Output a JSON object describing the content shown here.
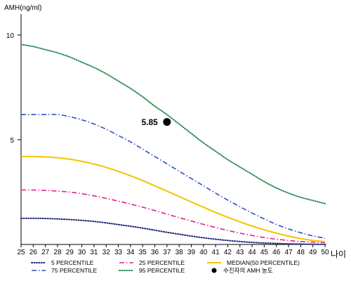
{
  "chart_data": {
    "type": "line",
    "ylabel": "AMH(ng/ml)",
    "xlabel": "나이",
    "x": [
      25,
      26,
      27,
      28,
      29,
      30,
      31,
      32,
      33,
      34,
      35,
      36,
      37,
      38,
      39,
      40,
      41,
      42,
      43,
      44,
      45,
      46,
      47,
      48,
      49,
      50
    ],
    "x_ticks": [
      "25",
      "26",
      "27",
      "28",
      "29",
      "30",
      "31",
      "32",
      "33",
      "34",
      "35",
      "36",
      "37",
      "38",
      "39",
      "40",
      "41",
      "42",
      "43",
      "44",
      "45",
      "46",
      "47",
      "48",
      "49",
      "50"
    ],
    "y_ticks": [
      5,
      10
    ],
    "y_tick_labels": [
      "5",
      "10"
    ],
    "xlim": [
      25,
      50
    ],
    "ylim": [
      0,
      11
    ],
    "grid": false,
    "legend_position": "bottom",
    "series": [
      {
        "name": "5 PERCENTILE",
        "color": "#1f2a7a",
        "dash": "dotted",
        "values": [
          1.25,
          1.25,
          1.24,
          1.22,
          1.19,
          1.15,
          1.1,
          1.03,
          0.95,
          0.87,
          0.78,
          0.68,
          0.58,
          0.49,
          0.4,
          0.32,
          0.25,
          0.19,
          0.14,
          0.1,
          0.07,
          0.05,
          0.03,
          0.02,
          0.01,
          0.01
        ]
      },
      {
        "name": "25 PERCENTILE",
        "color": "#e0208a",
        "dash": "dashdot",
        "values": [
          2.6,
          2.6,
          2.58,
          2.55,
          2.5,
          2.42,
          2.32,
          2.2,
          2.07,
          1.93,
          1.78,
          1.62,
          1.45,
          1.28,
          1.12,
          0.96,
          0.81,
          0.67,
          0.54,
          0.43,
          0.33,
          0.25,
          0.19,
          0.14,
          0.11,
          0.09
        ]
      },
      {
        "name": "MEDIAN(50 PERCENTILE)",
        "color": "#f2c400",
        "dash": "solid",
        "values": [
          4.2,
          4.2,
          4.18,
          4.14,
          4.07,
          3.97,
          3.84,
          3.68,
          3.49,
          3.28,
          3.05,
          2.8,
          2.55,
          2.29,
          2.03,
          1.78,
          1.53,
          1.3,
          1.08,
          0.88,
          0.7,
          0.54,
          0.4,
          0.28,
          0.19,
          0.13
        ]
      },
      {
        "name": "75 PERCENTILE",
        "color": "#2f4fbf",
        "dash": "dashdot",
        "values": [
          6.2,
          6.2,
          6.2,
          6.2,
          6.1,
          5.95,
          5.75,
          5.5,
          5.2,
          4.9,
          4.55,
          4.2,
          3.85,
          3.5,
          3.15,
          2.8,
          2.45,
          2.12,
          1.8,
          1.5,
          1.22,
          0.96,
          0.74,
          0.56,
          0.41,
          0.3
        ]
      },
      {
        "name": "95 PERCENTILE",
        "color": "#2e8b57",
        "dash": "dotted",
        "values": [
          9.55,
          9.45,
          9.3,
          9.15,
          8.95,
          8.7,
          8.45,
          8.15,
          7.8,
          7.45,
          7.05,
          6.6,
          6.2,
          5.75,
          5.3,
          4.85,
          4.45,
          4.05,
          3.7,
          3.35,
          3.0,
          2.7,
          2.45,
          2.25,
          2.1,
          1.95
        ]
      }
    ],
    "annotations": [
      {
        "name": "수진자의 AMH 농도",
        "x": 37,
        "y": 5.85,
        "label": "5.85",
        "color": "#000000"
      }
    ]
  }
}
